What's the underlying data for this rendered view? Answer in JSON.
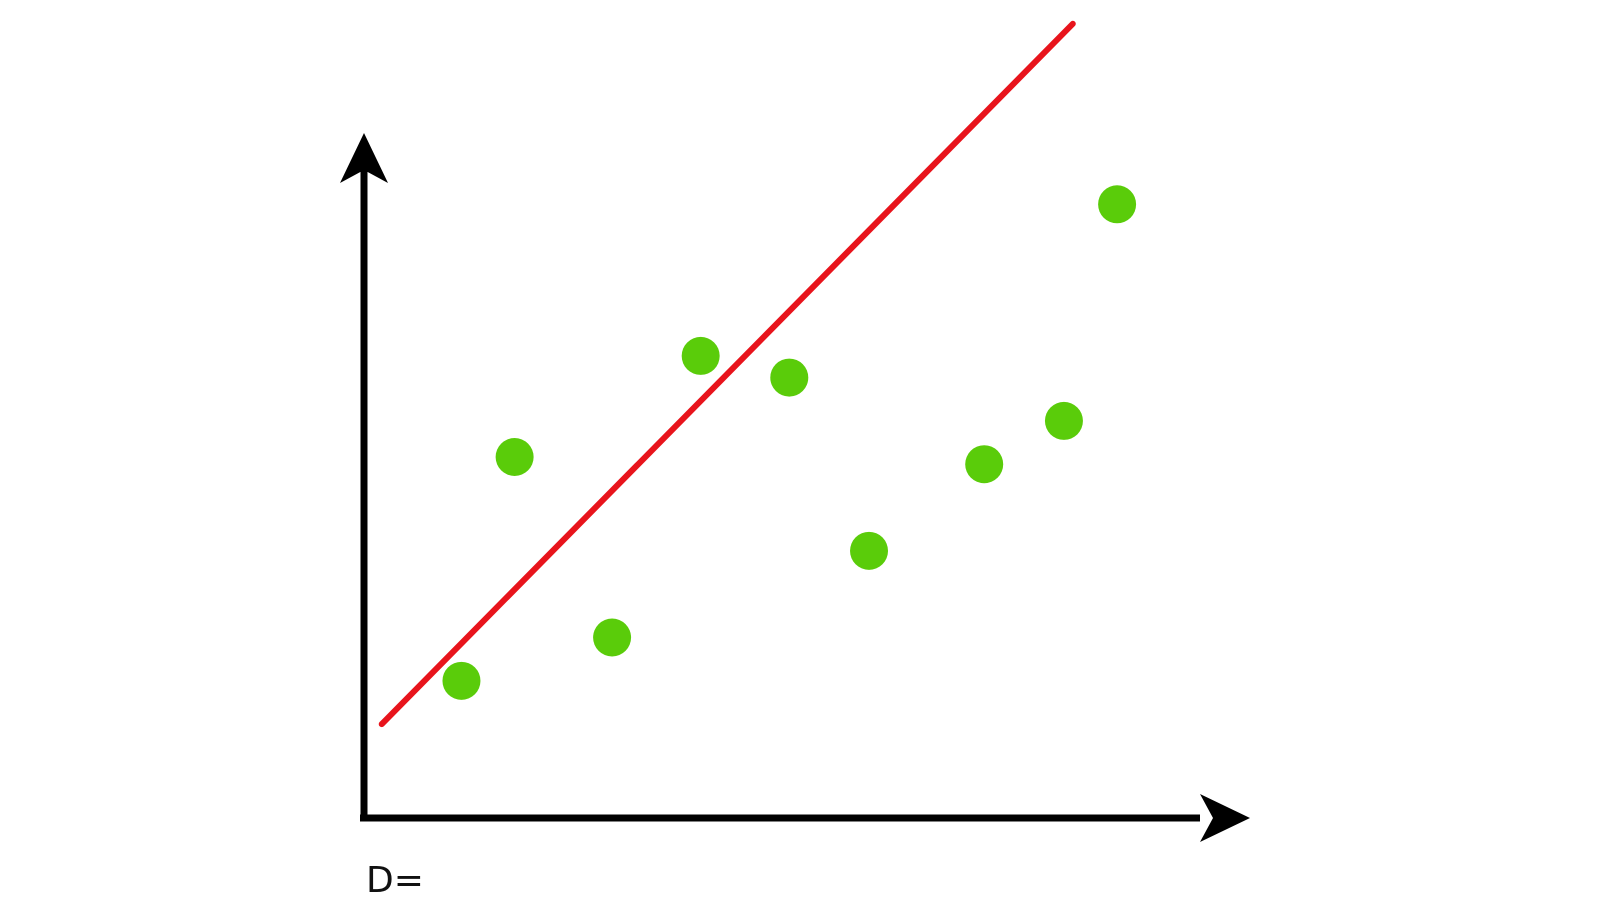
{
  "chart_data": {
    "type": "scatter",
    "title": "",
    "xlabel": "",
    "ylabel": "",
    "xlim": [
      0,
      10
    ],
    "ylim": [
      0,
      10
    ],
    "grid": false,
    "points": [
      {
        "x": 1.1,
        "y": 1.9
      },
      {
        "x": 1.7,
        "y": 5.0
      },
      {
        "x": 2.8,
        "y": 2.5
      },
      {
        "x": 3.8,
        "y": 6.4
      },
      {
        "x": 4.8,
        "y": 6.1
      },
      {
        "x": 5.7,
        "y": 3.7
      },
      {
        "x": 7.0,
        "y": 4.9
      },
      {
        "x": 7.9,
        "y": 5.5
      },
      {
        "x": 8.5,
        "y": 8.5
      }
    ],
    "fit_line": {
      "x0": 0.2,
      "y0": 1.3,
      "x1": 8.0,
      "y1": 11.0
    },
    "colors": {
      "points": "#5acc0a",
      "line": "#e8141c",
      "axes": "#000000"
    }
  },
  "annotation": "D="
}
